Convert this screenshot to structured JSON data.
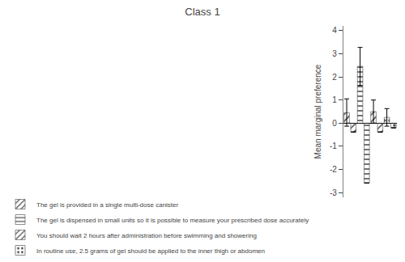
{
  "chart_data": {
    "type": "bar",
    "title": "Class 1",
    "ylabel": "Mean marginal preference",
    "categories": [
      null,
      null,
      null,
      null,
      null,
      null,
      null,
      null
    ],
    "series": [
      {
        "name": "The gel is provided in a single multi-dose canister",
        "color": "#D4A827",
        "values": [
          0.45,
          -0.38,
          null,
          null,
          null,
          null,
          null,
          null
        ],
        "err_low": [
          0.58,
          0.0,
          null,
          null,
          null,
          null,
          null,
          null
        ],
        "err_high": [
          0.6,
          0.0,
          null,
          null,
          null,
          null,
          null,
          null
        ]
      },
      {
        "name": "The gel is dispensed in small units so it is possible to measure your prescribed dose accurately",
        "color": "#C8C8C8",
        "values": [
          null,
          null,
          2.45,
          -2.58,
          null,
          null,
          null,
          null
        ],
        "err_low": [
          null,
          null,
          0.82,
          0.0,
          null,
          null,
          null,
          null
        ],
        "err_high": [
          null,
          null,
          0.82,
          0.0,
          null,
          null,
          null,
          null
        ]
      },
      {
        "name": "You should wait 2 hours after administration before swimming and showering",
        "color": "#4472C4",
        "values": [
          null,
          null,
          null,
          null,
          0.5,
          -0.38,
          null,
          null
        ],
        "err_low": [
          null,
          null,
          null,
          null,
          0.5,
          0.0,
          null,
          null
        ],
        "err_high": [
          null,
          null,
          null,
          null,
          0.5,
          0.0,
          null,
          null
        ]
      },
      {
        "name": "In routine use, 2.5 grams of gel should be applied to the inner thigh or abdomen",
        "color": "#D4A050",
        "values": [
          null,
          null,
          null,
          null,
          null,
          null,
          0.25,
          -0.2
        ],
        "err_low": [
          null,
          null,
          null,
          null,
          null,
          null,
          0.38,
          0.0
        ],
        "err_high": [
          null,
          null,
          null,
          null,
          null,
          null,
          0.38,
          0.0
        ]
      }
    ],
    "ylim": [
      -3.2,
      4.2
    ],
    "yticks": [
      -3,
      -2,
      -1,
      0,
      1,
      2,
      3,
      4
    ],
    "grid": false,
    "legend": "below",
    "tick_labels": "y"
  }
}
